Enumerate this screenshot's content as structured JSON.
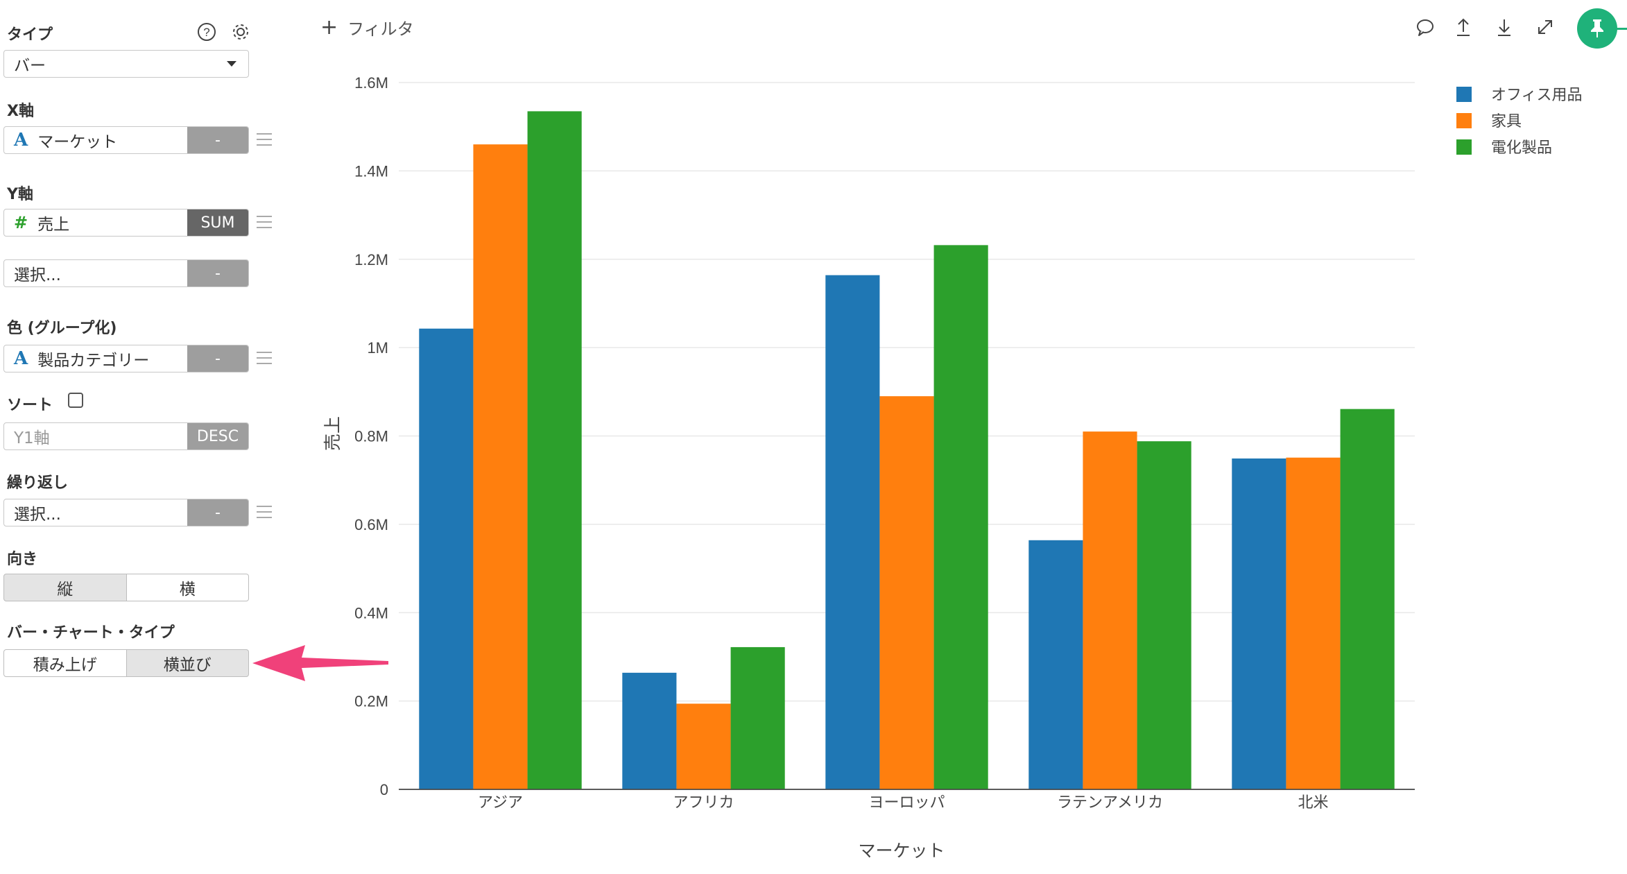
{
  "panel": {
    "type_label": "タイプ",
    "type_value": "バー",
    "x_label": "X軸",
    "x_field": "マーケット",
    "x_agg": "-",
    "y_label": "Y軸",
    "y_field": "売上",
    "y_agg": "SUM",
    "y2_placeholder": "選択...",
    "y2_agg": "-",
    "color_label": "色 (グループ化)",
    "color_field": "製品カテゴリー",
    "color_agg": "-",
    "sort_label": "ソート",
    "sort_placeholder": "Y1軸",
    "sort_order": "DESC",
    "repeat_label": "繰り返し",
    "repeat_placeholder": "選択...",
    "repeat_agg": "-",
    "orientation_label": "向き",
    "orientation_options": [
      "縦",
      "横"
    ],
    "orientation_selected": "縦",
    "bar_type_label": "バー・チャート・タイプ",
    "bar_type_options": [
      "積み上げ",
      "横並び"
    ],
    "bar_type_selected": "横並び"
  },
  "toolbar": {
    "filter_label": "フィルタ",
    "accent_color": "#1fb27a"
  },
  "annotation_arrow_color": "#f0417a",
  "chart_data": {
    "type": "bar",
    "mode": "grouped",
    "categories": [
      "アジア",
      "アフリカ",
      "ヨーロッパ",
      "ラテンアメリカ",
      "北米"
    ],
    "series": [
      {
        "name": "オフィス用品",
        "color": "#1f77b4",
        "values": [
          1043000,
          264000,
          1164000,
          564000,
          749000
        ]
      },
      {
        "name": "家具",
        "color": "#ff7f0e",
        "values": [
          1460000,
          194000,
          890000,
          810000,
          751000
        ]
      },
      {
        "name": "電化製品",
        "color": "#2ca02c",
        "values": [
          1535000,
          322000,
          1232000,
          788000,
          861000
        ]
      }
    ],
    "xlabel": "マーケット",
    "ylabel": "売上",
    "ylim": [
      0,
      1600000
    ],
    "yticks": [
      0,
      200000,
      400000,
      600000,
      800000,
      1000000,
      1200000,
      1400000,
      1600000
    ],
    "ytick_labels": [
      "0",
      "0.2M",
      "0.4M",
      "0.6M",
      "0.8M",
      "1M",
      "1.2M",
      "1.4M",
      "1.6M"
    ],
    "grid": true,
    "legend_position": "top-right"
  }
}
